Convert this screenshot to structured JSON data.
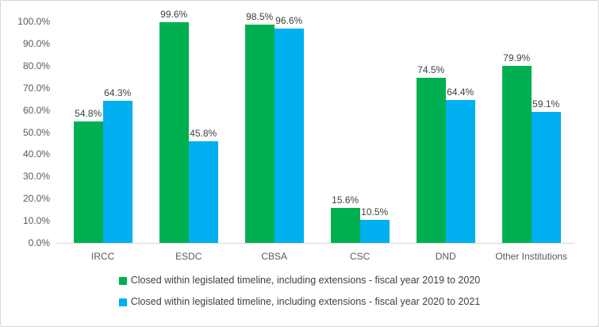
{
  "chart_data": {
    "type": "bar",
    "categories": [
      "IRCC",
      "ESDC",
      "CBSA",
      "CSC",
      "DND",
      "Other Institutions"
    ],
    "series": [
      {
        "name": "Closed within legislated timeline, including extensions - fiscal year 2019 to 2020",
        "color": "#00B050",
        "values": [
          54.8,
          99.6,
          98.5,
          15.6,
          74.5,
          79.9
        ],
        "data_labels": [
          "54.8%",
          "99.6%",
          "98.5%",
          "15.6%",
          "74.5%",
          "79.9%"
        ]
      },
      {
        "name": "Closed within legislated timeline, including extensions - fiscal year 2020 to 2021",
        "color": "#00B0F0",
        "values": [
          64.3,
          45.8,
          96.6,
          10.5,
          64.4,
          59.1
        ],
        "data_labels": [
          "64.3%",
          "45.8%",
          "96.6%",
          "10.5%",
          "64.4%",
          "59.1%"
        ]
      }
    ],
    "title": "",
    "xlabel": "",
    "ylabel": "",
    "value_suffix": "%",
    "y_axis": {
      "min": 0,
      "max": 100,
      "step": 10,
      "labels": [
        "0.0%",
        "10.0%",
        "20.0%",
        "30.0%",
        "40.0%",
        "50.0%",
        "60.0%",
        "70.0%",
        "80.0%",
        "90.0%",
        "100.0%"
      ]
    },
    "grid": false,
    "legend_position": "bottom",
    "axis_line_color": "#D9D9D9",
    "tick_label_color": "#595959",
    "data_label_color": "#404040"
  }
}
